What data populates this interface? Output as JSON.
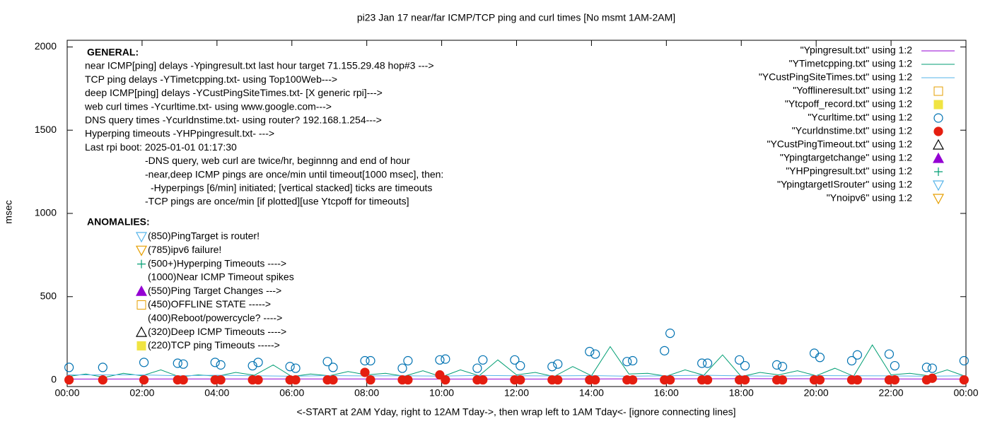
{
  "chart_data": {
    "type": "line",
    "title": "pi23 Jan 17  near/far ICMP/TCP ping and curl times [No msmt 1AM-2AM]",
    "y_label": "msec",
    "x_label": "<-START at 2AM Yday, right to 12AM Tday->, then wrap left to 1AM Tday<- [ignore connecting lines]",
    "xlim": [
      0,
      24
    ],
    "xticks": [
      {
        "value": 0,
        "label": "00:00"
      },
      {
        "value": 2,
        "label": "02:00"
      },
      {
        "value": 4,
        "label": "04:00"
      },
      {
        "value": 6,
        "label": "06:00"
      },
      {
        "value": 8,
        "label": "08:00"
      },
      {
        "value": 10,
        "label": "10:00"
      },
      {
        "value": 12,
        "label": "12:00"
      },
      {
        "value": 14,
        "label": "14:00"
      },
      {
        "value": 16,
        "label": "16:00"
      },
      {
        "value": 18,
        "label": "18:00"
      },
      {
        "value": 20,
        "label": "20:00"
      },
      {
        "value": 22,
        "label": "22:00"
      },
      {
        "value": 24,
        "label": "00:00"
      }
    ],
    "ylim": [
      -40,
      2040
    ],
    "yticks": [
      0,
      500,
      1000,
      1500,
      2000
    ],
    "grid": false,
    "legend": "top-right",
    "general_heading": "GENERAL:",
    "general_notes": [
      "near ICMP[ping] delays -Ypingresult.txt last hour target 71.155.29.48 hop#3 --->",
      "TCP ping delays -YTimetcpping.txt- using Top100Web--->",
      "deep ICMP[ping] delays -YCustPingSiteTimes.txt- [X generic rpi]--->",
      "web curl times -Ycurltime.txt- using www.google.com--->",
      "DNS query times -Ycurldnstime.txt- using router? 192.168.1.254--->",
      "Hyperping timeouts -YHPpingresult.txt- --->",
      "Last rpi boot: 2025-01-01 01:17:30",
      "-DNS query, web curl are twice/hr, beginnng and end of hour",
      "-near,deep ICMP pings are once/min until timeout[1000 msec], then:",
      "-Hyperpings [6/min] initiated; [vertical stacked] ticks are timeouts",
      "-TCP pings are once/min [if plotted][use Ytcpoff for timeouts]"
    ],
    "anomalies_heading": "ANOMALIES:",
    "anomaly_notes": [
      "(850)PingTarget is router!",
      "(785)ipv6 failure!",
      "(500+)Hyperping Timeouts ---->",
      "(1000)Near ICMP Timeout spikes",
      "(550)Ping Target Changes --->",
      "(450)OFFLINE STATE ----->",
      "(400)Reboot/powercycle? ---->",
      "(320)Deep ICMP Timeouts ---->",
      "(220)TCP ping Timeouts ----->"
    ],
    "series": [
      {
        "name": "\"Ypingresult.txt\" using 1:2",
        "color": "#9400d3",
        "marker": "line",
        "x": [
          0,
          6,
          12,
          18,
          24
        ],
        "values": [
          5,
          6,
          5,
          7,
          5
        ]
      },
      {
        "name": "\"YTimetcpping.txt\" using 1:2",
        "color": "#009e73",
        "marker": "line",
        "x": [
          0,
          0.5,
          1,
          1.5,
          2,
          2.5,
          3,
          3.5,
          4,
          4.5,
          5,
          5.5,
          6,
          6.5,
          7,
          7.5,
          8,
          8.5,
          9,
          9.5,
          10,
          10.5,
          11,
          11.5,
          12,
          12.5,
          13,
          13.5,
          14,
          14.5,
          15,
          15.5,
          16,
          16.5,
          17,
          17.5,
          18,
          18.5,
          19,
          19.5,
          20,
          20.5,
          21,
          21.5,
          22,
          22.5,
          23,
          23.5,
          24
        ],
        "values": [
          20,
          35,
          15,
          40,
          25,
          60,
          18,
          30,
          22,
          45,
          28,
          90,
          20,
          35,
          25,
          50,
          30,
          40,
          22,
          55,
          18,
          60,
          25,
          120,
          30,
          45,
          20,
          80,
          25,
          200,
          35,
          40,
          22,
          60,
          28,
          150,
          20,
          45,
          30,
          55,
          25,
          70,
          22,
          210,
          30,
          40,
          25,
          60,
          20
        ]
      },
      {
        "name": "\"YCustPingSiteTimes.txt\" using 1:2",
        "color": "#56b4e9",
        "marker": "line",
        "x": [
          0,
          1,
          2,
          3,
          4,
          5,
          6,
          7,
          8,
          9,
          10,
          11,
          12,
          13,
          14,
          15,
          16,
          17,
          18,
          19,
          20,
          21,
          22,
          23,
          24
        ],
        "values": [
          30,
          30,
          30,
          25,
          28,
          25,
          22,
          26,
          24,
          25,
          23,
          27,
          25,
          24,
          26,
          22,
          25,
          28,
          24,
          23,
          26,
          25,
          24,
          22,
          25
        ]
      },
      {
        "name": "\"Yofflineresult.txt\" using 1:2",
        "color": "#e69f00",
        "marker": "square-open",
        "x": [],
        "values": []
      },
      {
        "name": "\"Ytcpoff_record.txt\" using 1:2",
        "color": "#f0e442",
        "marker": "square-filled",
        "x": [],
        "values": []
      },
      {
        "name": "\"Ycurltime.txt\" using 1:2",
        "color": "#0072b2",
        "marker": "circle-open",
        "x": [
          0.05,
          0.95,
          2.05,
          2.95,
          3.1,
          3.95,
          4.1,
          4.95,
          5.1,
          5.95,
          6.1,
          6.95,
          7.1,
          7.95,
          8.1,
          8.95,
          9.1,
          9.95,
          10.1,
          10.95,
          11.1,
          11.95,
          12.1,
          12.95,
          13.1,
          13.95,
          14.1,
          14.95,
          15.1,
          15.95,
          16.1,
          16.95,
          17.1,
          17.95,
          18.1,
          18.95,
          19.1,
          19.95,
          20.1,
          20.95,
          21.1,
          21.95,
          22.1,
          22.95,
          23.1,
          23.95
        ],
        "values": [
          75,
          75,
          105,
          100,
          95,
          105,
          90,
          85,
          105,
          80,
          70,
          110,
          75,
          115,
          115,
          70,
          115,
          120,
          125,
          70,
          120,
          120,
          85,
          80,
          95,
          170,
          155,
          110,
          115,
          175,
          280,
          100,
          100,
          120,
          85,
          90,
          80,
          160,
          135,
          115,
          150,
          155,
          85,
          75,
          70,
          115
        ]
      },
      {
        "name": "\"Ycurldnstime.txt\" using 1:2",
        "color": "#e51e10",
        "marker": "circle-filled",
        "x": [
          0.05,
          0.95,
          2.05,
          2.95,
          3.1,
          3.95,
          4.1,
          4.95,
          5.1,
          5.95,
          6.1,
          6.95,
          7.1,
          7.95,
          8.1,
          8.95,
          9.1,
          9.95,
          10.1,
          10.95,
          11.1,
          11.95,
          12.1,
          12.95,
          13.1,
          13.95,
          14.1,
          14.95,
          15.1,
          15.95,
          16.1,
          16.95,
          17.1,
          17.95,
          18.1,
          18.95,
          19.1,
          19.95,
          20.1,
          20.95,
          21.1,
          21.95,
          22.1,
          22.95,
          23.1,
          23.95
        ],
        "values": [
          0,
          0,
          0,
          0,
          0,
          0,
          0,
          0,
          0,
          0,
          0,
          0,
          0,
          45,
          0,
          0,
          0,
          30,
          0,
          0,
          0,
          0,
          0,
          0,
          0,
          0,
          0,
          0,
          0,
          0,
          0,
          0,
          0,
          0,
          0,
          0,
          0,
          0,
          0,
          0,
          0,
          0,
          0,
          0,
          10,
          0
        ]
      },
      {
        "name": "\"YCustPingTimeout.txt\" using 1:2",
        "color": "#000000",
        "marker": "triangle-up-open",
        "x": [],
        "values": []
      },
      {
        "name": "\"Ypingtargetchange\" using 1:2",
        "color": "#9400d3",
        "marker": "triangle-up-filled",
        "x": [],
        "values": []
      },
      {
        "name": "\"YHPpingresult.txt\" using 1:2",
        "color": "#009e73",
        "marker": "plus",
        "x": [],
        "values": []
      },
      {
        "name": "\"YpingtargetISrouter\" using 1:2",
        "color": "#56b4e9",
        "marker": "triangle-down-open",
        "x": [],
        "values": []
      },
      {
        "name": "\"Ynoipv6\" using 1:2",
        "color": "#e69f00",
        "marker": "triangle-down-open",
        "x": [],
        "values": []
      }
    ]
  }
}
